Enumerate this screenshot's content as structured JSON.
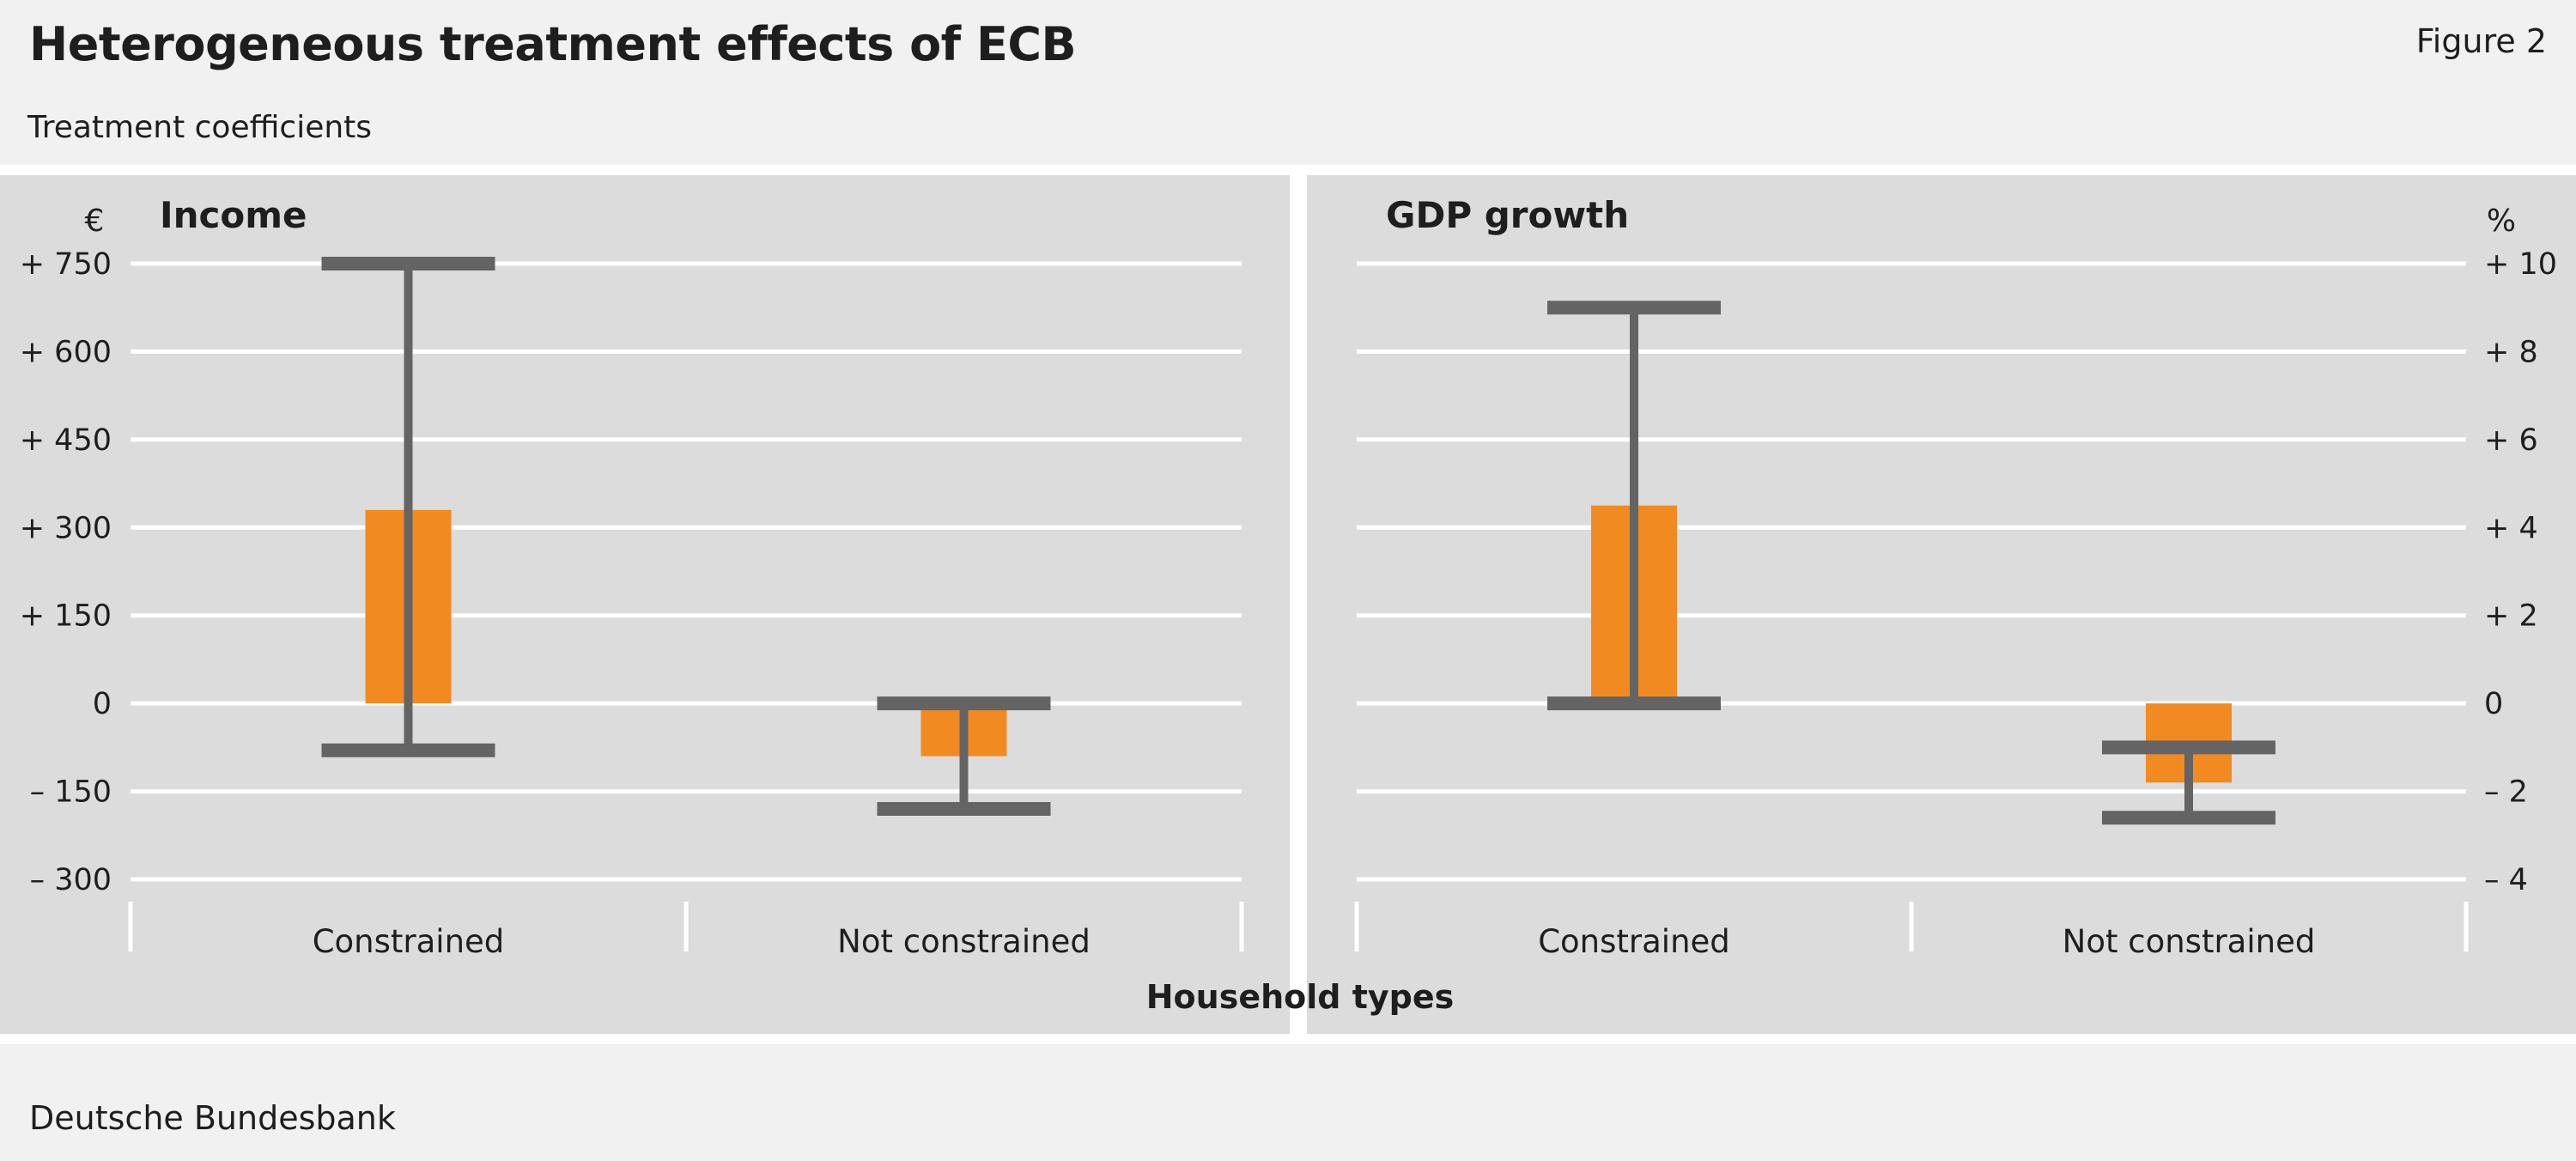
{
  "header": {
    "title": "Heterogeneous treatment effects of ECB",
    "figure_label": "Figure 2",
    "subtitle": "Treatment coefficients"
  },
  "footer": {
    "source": "Deutsche Bundesbank"
  },
  "colors": {
    "bar": "#f28a22",
    "whisker": "#646464",
    "panel_bg": "#dcdcdc",
    "grid": "#ffffff",
    "page_bg": "#f1f1f1"
  },
  "x_axis_title": "Household types",
  "chart_data": [
    {
      "type": "bar",
      "title": "Income",
      "unit": "€",
      "axis_side": "left",
      "categories": [
        "Constrained",
        "Not constrained"
      ],
      "values": [
        330,
        -90
      ],
      "ci_low": [
        -80,
        -180
      ],
      "ci_high": [
        750,
        0
      ],
      "ylim": [
        -300,
        750
      ],
      "ticks": [
        750,
        600,
        450,
        300,
        150,
        0,
        -150,
        -300
      ],
      "tick_labels": [
        "+ 750",
        "+ 600",
        "+ 450",
        "+ 300",
        "+ 150",
        "0",
        "– 150",
        "– 300"
      ],
      "grid": true
    },
    {
      "type": "bar",
      "title": "GDP growth",
      "unit": "%",
      "axis_side": "right",
      "categories": [
        "Constrained",
        "Not constrained"
      ],
      "values": [
        4.5,
        -1.8
      ],
      "ci_low": [
        0,
        -2.6
      ],
      "ci_high": [
        9,
        -1
      ],
      "ylim": [
        -4,
        10
      ],
      "ticks": [
        10,
        8,
        6,
        4,
        2,
        0,
        -2,
        -4
      ],
      "tick_labels": [
        "+ 10",
        "+  8",
        "+  6",
        "+  4",
        "+  2",
        "0",
        "–  2",
        "–  4"
      ],
      "grid": true
    }
  ]
}
